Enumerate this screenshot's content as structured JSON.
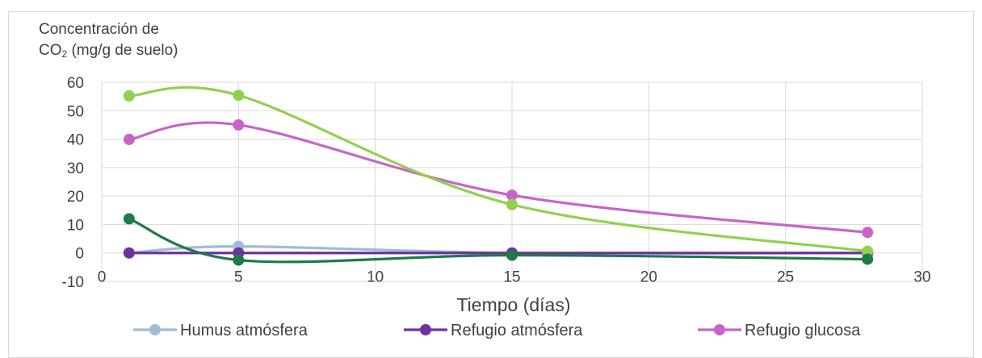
{
  "chart_data": {
    "type": "line",
    "title": "",
    "ylabel_prefix": "Concentración de",
    "ylabel_line2_pre": "CO",
    "ylabel_sub": "2",
    "ylabel_line2_post": "  (mg/g de suelo)",
    "xlabel": "Tiempo (días)",
    "xlim": [
      0,
      30
    ],
    "ylim": [
      -10,
      60
    ],
    "xticks": [
      0,
      5,
      10,
      15,
      20,
      25,
      30
    ],
    "yticks": [
      -10,
      0,
      10,
      20,
      30,
      40,
      50,
      60
    ],
    "grid": true,
    "smooth": true,
    "legend_position": "bottom",
    "x": [
      1,
      5,
      15,
      28
    ],
    "series": [
      {
        "name": "Humus atmósfera",
        "color": "#9fbcd4",
        "values": [
          0,
          2.3,
          0,
          0
        ],
        "in_legend": true
      },
      {
        "name": "Refugio atmósfera",
        "color": "#7030a0",
        "values": [
          0,
          0,
          0,
          0
        ],
        "in_legend": true
      },
      {
        "name": "Refugio glucosa",
        "color": "#c864c8",
        "values": [
          39.9,
          45,
          20.3,
          7.2
        ],
        "in_legend": true
      },
      {
        "name": "",
        "color": "#92d050",
        "values": [
          55.2,
          55.4,
          17,
          0.6
        ],
        "in_legend": false
      },
      {
        "name": "",
        "color": "#1e7b45",
        "values": [
          12,
          -2.5,
          -0.8,
          -2.2
        ],
        "in_legend": false
      }
    ]
  }
}
